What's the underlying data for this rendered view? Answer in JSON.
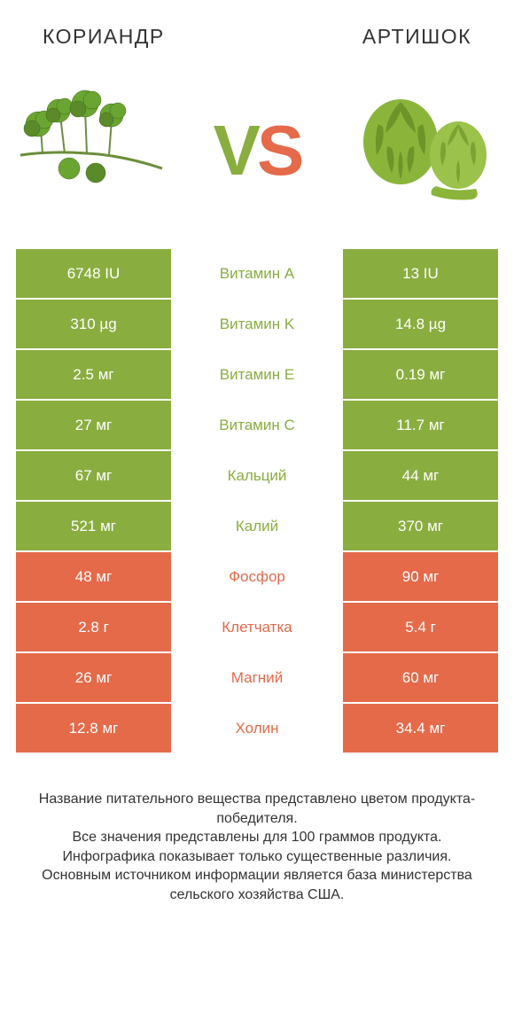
{
  "colors": {
    "green": "#8aad3f",
    "orange": "#e46a4a",
    "text": "#333333"
  },
  "header": {
    "left": "КОРИАНДР",
    "right": "АРТИШОК"
  },
  "vs": {
    "v": "V",
    "s": "S"
  },
  "rows": [
    {
      "label": "Витамин A",
      "left": "6748 IU",
      "right": "13 IU",
      "winner": "left"
    },
    {
      "label": "Витамин K",
      "left": "310 µg",
      "right": "14.8 µg",
      "winner": "left"
    },
    {
      "label": "Витамин E",
      "left": "2.5 мг",
      "right": "0.19 мг",
      "winner": "left"
    },
    {
      "label": "Витамин C",
      "left": "27 мг",
      "right": "11.7 мг",
      "winner": "left"
    },
    {
      "label": "Кальций",
      "left": "67 мг",
      "right": "44 мг",
      "winner": "left"
    },
    {
      "label": "Калий",
      "left": "521 мг",
      "right": "370 мг",
      "winner": "left"
    },
    {
      "label": "Фосфор",
      "left": "48 мг",
      "right": "90 мг",
      "winner": "right"
    },
    {
      "label": "Клетчатка",
      "left": "2.8 г",
      "right": "5.4 г",
      "winner": "right"
    },
    {
      "label": "Магний",
      "left": "26 мг",
      "right": "60 мг",
      "winner": "right"
    },
    {
      "label": "Холин",
      "left": "12.8 мг",
      "right": "34.4 мг",
      "winner": "right"
    }
  ],
  "footer": "Название питательного вещества представлено цветом продукта-победителя.\nВсе значения представлены для 100 граммов продукта.\nИнфографика показывает только существенные различия.\nОсновным источником информации является база министерства сельского хозяйства США."
}
